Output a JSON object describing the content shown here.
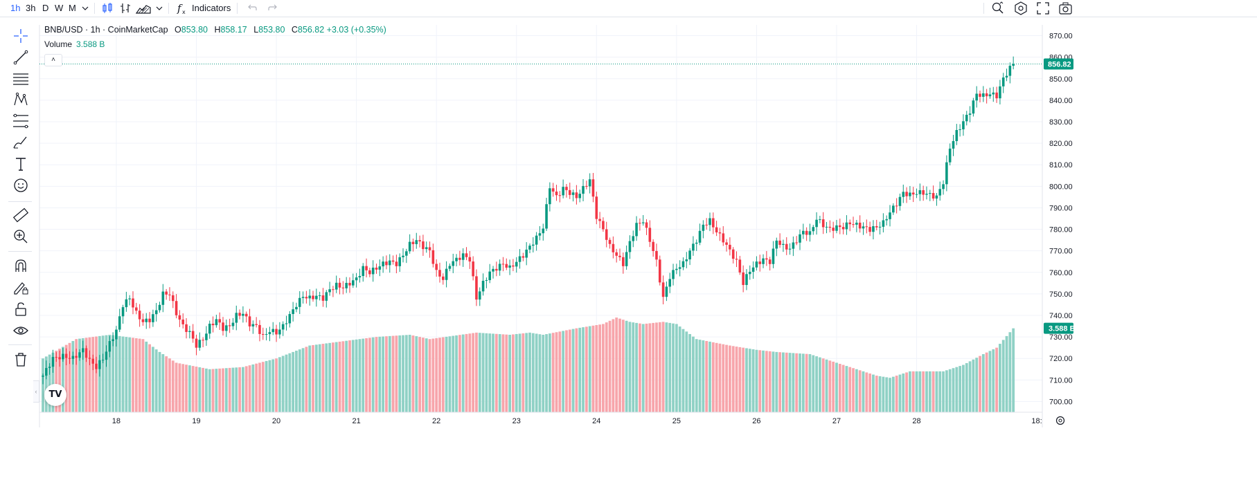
{
  "toolbar": {
    "intervals": [
      "1h",
      "3h",
      "D",
      "W",
      "M"
    ],
    "active_interval": "1h",
    "indicators_label": "Indicators",
    "icons": [
      "chevron-down-icon",
      "candles-icon",
      "bars-icon",
      "area-icon",
      "chevron-down-icon",
      "function-icon",
      "undo-icon",
      "redo-icon",
      "search-zoom-icon",
      "settings-icon",
      "fullscreen-icon",
      "camera-icon"
    ]
  },
  "left_tools": [
    "crosshair-icon",
    "trendline-icon",
    "horizontal-lines-icon",
    "pattern-icon",
    "fib-icon",
    "brush-icon",
    "text-icon",
    "emoji-icon",
    "ruler-icon",
    "zoom-in-icon",
    "magnet-icon",
    "lock-draw-icon",
    "lock-icon",
    "eye-icon",
    "trash-icon"
  ],
  "legend": {
    "symbol": "BNB/USD · 1h · CoinMarketCap",
    "open_label": "O",
    "open": "853.80",
    "high_label": "H",
    "high": "858.17",
    "low_label": "L",
    "low": "853.80",
    "close_label": "C",
    "close": "856.82",
    "change": "+3.03 (+0.35%)",
    "volume_label": "Volume",
    "volume_value": "3.588 B"
  },
  "logo_text": "TV",
  "colors": {
    "up": "#089981",
    "down": "#f23645",
    "vol_up": "#8fd1c5",
    "vol_down": "#f7a5ab",
    "grid": "#f0f3fa",
    "axis_text": "#131722"
  },
  "chart_data": {
    "type": "candlestick",
    "symbol": "BNB/USD",
    "interval": "1h",
    "ylim": [
      695,
      875
    ],
    "y_ticks": [
      700,
      710,
      720,
      730,
      740,
      750,
      760,
      770,
      780,
      790,
      800,
      810,
      820,
      830,
      840,
      850,
      860,
      870
    ],
    "x_ticks": [
      "18",
      "19",
      "20",
      "21",
      "22",
      "23",
      "24",
      "25",
      "26",
      "27",
      "28",
      "18:"
    ],
    "last_price": 856.82,
    "last_price_label": "856.82",
    "volume_label": "3.588 B",
    "anchors": [
      [
        0,
        712
      ],
      [
        3,
        720
      ],
      [
        6,
        721
      ],
      [
        9,
        720
      ],
      [
        12,
        724
      ],
      [
        14,
        719
      ],
      [
        16,
        716
      ],
      [
        18,
        720
      ],
      [
        20,
        727
      ],
      [
        22,
        733
      ],
      [
        24,
        745
      ],
      [
        26,
        748
      ],
      [
        28,
        741
      ],
      [
        30,
        737
      ],
      [
        32,
        738
      ],
      [
        34,
        742
      ],
      [
        36,
        750
      ],
      [
        38,
        750
      ],
      [
        40,
        741
      ],
      [
        42,
        735
      ],
      [
        44,
        732
      ],
      [
        46,
        726
      ],
      [
        48,
        729
      ],
      [
        50,
        735
      ],
      [
        52,
        738
      ],
      [
        54,
        734
      ],
      [
        56,
        735
      ],
      [
        58,
        740
      ],
      [
        60,
        741
      ],
      [
        62,
        736
      ],
      [
        64,
        735
      ],
      [
        66,
        730
      ],
      [
        68,
        733
      ],
      [
        70,
        732
      ],
      [
        72,
        735
      ],
      [
        74,
        740
      ],
      [
        76,
        745
      ],
      [
        78,
        749
      ],
      [
        80,
        748
      ],
      [
        82,
        749
      ],
      [
        84,
        748
      ],
      [
        86,
        752
      ],
      [
        88,
        754
      ],
      [
        90,
        753
      ],
      [
        92,
        755
      ],
      [
        94,
        757
      ],
      [
        96,
        762
      ],
      [
        98,
        760
      ],
      [
        100,
        762
      ],
      [
        102,
        764
      ],
      [
        104,
        765
      ],
      [
        106,
        764
      ],
      [
        108,
        768
      ],
      [
        110,
        773
      ],
      [
        112,
        775
      ],
      [
        114,
        772
      ],
      [
        116,
        770
      ],
      [
        118,
        760
      ],
      [
        120,
        757
      ],
      [
        122,
        764
      ],
      [
        124,
        766
      ],
      [
        126,
        768
      ],
      [
        128,
        766
      ],
      [
        130,
        748
      ],
      [
        132,
        755
      ],
      [
        134,
        760
      ],
      [
        136,
        762
      ],
      [
        138,
        764
      ],
      [
        140,
        762
      ],
      [
        142,
        765
      ],
      [
        144,
        768
      ],
      [
        146,
        772
      ],
      [
        148,
        776
      ],
      [
        150,
        781
      ],
      [
        152,
        800
      ],
      [
        154,
        795
      ],
      [
        156,
        799
      ],
      [
        158,
        797
      ],
      [
        160,
        795
      ],
      [
        162,
        799
      ],
      [
        164,
        803
      ],
      [
        166,
        786
      ],
      [
        168,
        780
      ],
      [
        170,
        772
      ],
      [
        172,
        768
      ],
      [
        174,
        764
      ],
      [
        176,
        774
      ],
      [
        178,
        782
      ],
      [
        180,
        784
      ],
      [
        182,
        775
      ],
      [
        184,
        765
      ],
      [
        186,
        748
      ],
      [
        188,
        758
      ],
      [
        190,
        762
      ],
      [
        192,
        764
      ],
      [
        194,
        770
      ],
      [
        196,
        775
      ],
      [
        198,
        782
      ],
      [
        200,
        784
      ],
      [
        202,
        779
      ],
      [
        204,
        775
      ],
      [
        206,
        770
      ],
      [
        208,
        765
      ],
      [
        210,
        755
      ],
      [
        212,
        761
      ],
      [
        214,
        764
      ],
      [
        216,
        766
      ],
      [
        218,
        765
      ],
      [
        220,
        775
      ],
      [
        222,
        772
      ],
      [
        224,
        771
      ],
      [
        226,
        775
      ],
      [
        228,
        779
      ],
      [
        230,
        778
      ],
      [
        232,
        785
      ],
      [
        234,
        782
      ],
      [
        236,
        780
      ],
      [
        238,
        781
      ],
      [
        240,
        781
      ],
      [
        242,
        783
      ],
      [
        244,
        782
      ],
      [
        246,
        781
      ],
      [
        248,
        780
      ],
      [
        250,
        781
      ],
      [
        252,
        783
      ],
      [
        254,
        788
      ],
      [
        256,
        792
      ],
      [
        258,
        797
      ],
      [
        260,
        796
      ],
      [
        262,
        797
      ],
      [
        264,
        797
      ],
      [
        266,
        796
      ],
      [
        268,
        795
      ],
      [
        270,
        802
      ],
      [
        272,
        818
      ],
      [
        274,
        825
      ],
      [
        276,
        830
      ],
      [
        278,
        835
      ],
      [
        280,
        843
      ],
      [
        282,
        842
      ],
      [
        284,
        843
      ],
      [
        286,
        842
      ],
      [
        288,
        850
      ],
      [
        290,
        855
      ],
      [
        291,
        857
      ]
    ],
    "volume_anchors": [
      [
        0,
        720
      ],
      [
        10,
        729
      ],
      [
        20,
        731
      ],
      [
        30,
        729
      ],
      [
        35,
        723
      ],
      [
        40,
        718
      ],
      [
        50,
        715
      ],
      [
        60,
        716
      ],
      [
        70,
        720
      ],
      [
        80,
        726
      ],
      [
        90,
        728
      ],
      [
        100,
        730
      ],
      [
        110,
        731
      ],
      [
        116,
        729
      ],
      [
        130,
        732
      ],
      [
        140,
        731
      ],
      [
        146,
        732
      ],
      [
        150,
        731
      ],
      [
        160,
        734
      ],
      [
        168,
        736
      ],
      [
        172,
        739
      ],
      [
        176,
        737
      ],
      [
        180,
        736
      ],
      [
        186,
        737
      ],
      [
        190,
        736
      ],
      [
        196,
        729
      ],
      [
        206,
        726
      ],
      [
        214,
        724
      ],
      [
        220,
        723
      ],
      [
        230,
        722
      ],
      [
        240,
        717
      ],
      [
        250,
        712
      ],
      [
        254,
        711
      ],
      [
        260,
        714
      ],
      [
        270,
        714
      ],
      [
        276,
        717
      ],
      [
        282,
        722
      ],
      [
        286,
        725
      ],
      [
        291,
        734
      ]
    ]
  }
}
